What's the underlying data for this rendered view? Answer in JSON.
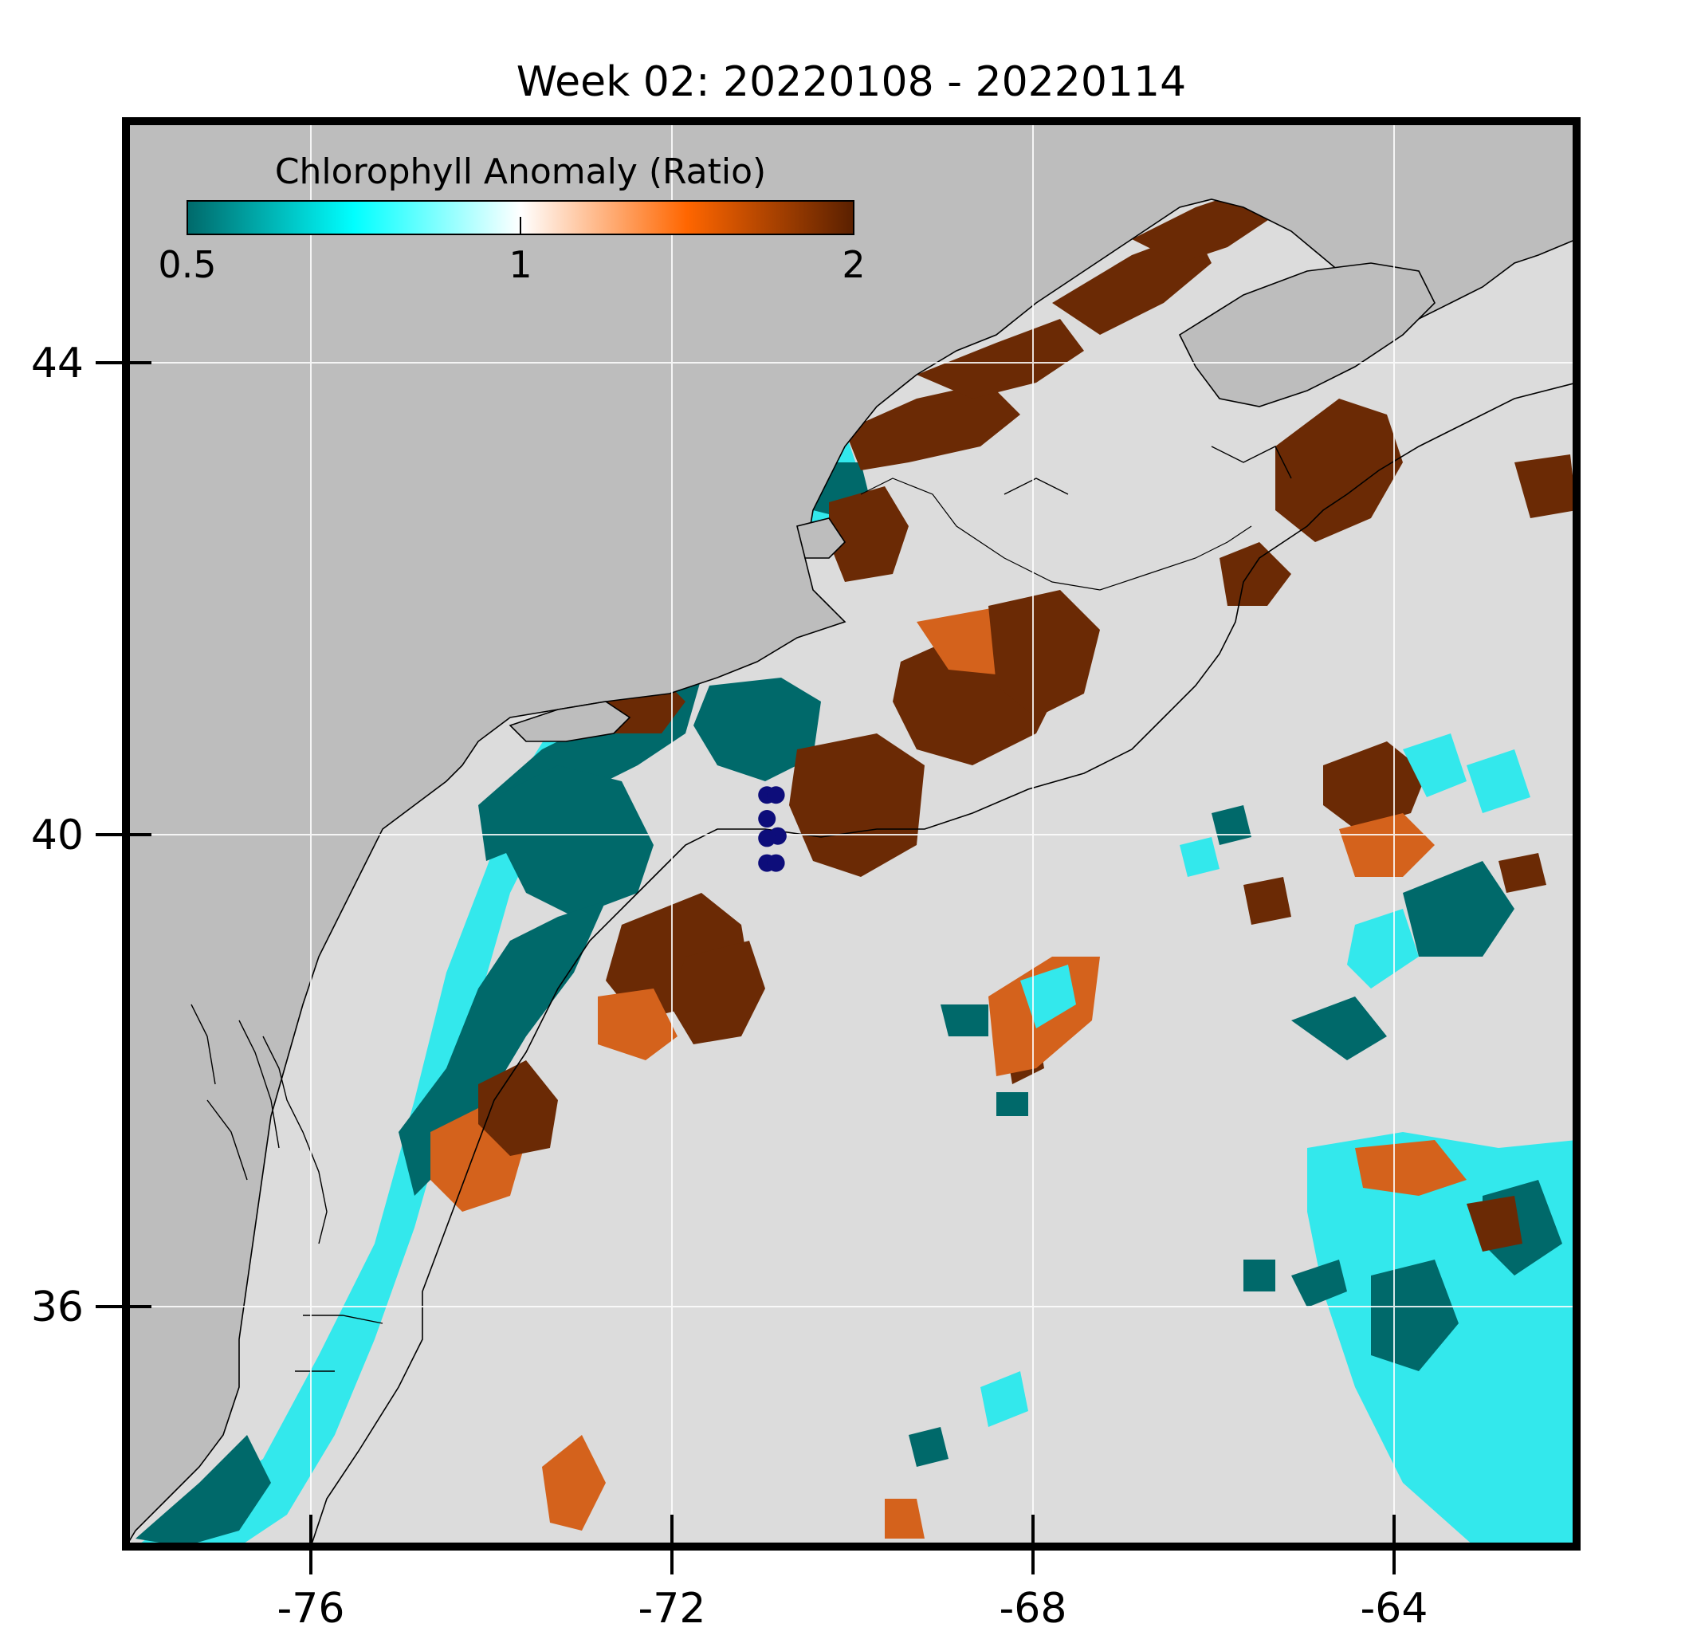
{
  "title": "Week 02: 20220108 - 20220114",
  "colorbar": {
    "label": "Chlorophyll Anomaly (Ratio)",
    "ticks": [
      "0.5",
      "1",
      "2"
    ],
    "colors": [
      "#00696a",
      "#00ffff",
      "#ffffff",
      "#ff6600",
      "#5a2000"
    ]
  },
  "axes": {
    "lon_ticks": [
      "-76",
      "-72",
      "-68",
      "-64"
    ],
    "lat_ticks": [
      "44",
      "40",
      "36"
    ]
  },
  "colors": {
    "land": "#bdbdbd",
    "ocean_nodata": "#dcdcdc",
    "anomaly_low": "#00696a",
    "anomaly_cyan": "#33e8ec",
    "anomaly_high": "#6b2a05",
    "anomaly_orange": "#d4621c",
    "stations": "#0d0d7a"
  },
  "stations": [
    {
      "lon": -70.93,
      "lat": 40.56
    },
    {
      "lon": -70.83,
      "lat": 40.56
    },
    {
      "lon": -70.93,
      "lat": 40.34
    },
    {
      "lon": -70.81,
      "lat": 40.18
    },
    {
      "lon": -70.93,
      "lat": 40.16
    },
    {
      "lon": -70.93,
      "lat": 39.93
    },
    {
      "lon": -70.83,
      "lat": 39.93
    }
  ]
}
